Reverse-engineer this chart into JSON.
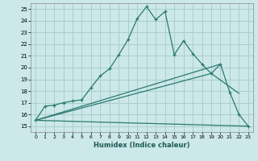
{
  "xlabel": "Humidex (Indice chaleur)",
  "bg_color": "#cce8e8",
  "grid_color": "#aacece",
  "line_color": "#2a7a70",
  "xlim": [
    -0.5,
    23.5
  ],
  "ylim": [
    14.5,
    25.5
  ],
  "xticks": [
    0,
    1,
    2,
    3,
    4,
    5,
    6,
    7,
    8,
    9,
    10,
    11,
    12,
    13,
    14,
    15,
    16,
    17,
    18,
    19,
    20,
    21,
    22,
    23
  ],
  "yticks": [
    15,
    16,
    17,
    18,
    19,
    20,
    21,
    22,
    23,
    24,
    25
  ],
  "line1_x": [
    0,
    1,
    2,
    3,
    4,
    5,
    6,
    7,
    8,
    9,
    10,
    11,
    12,
    13,
    14,
    15,
    16,
    17,
    18,
    19,
    20,
    21,
    22,
    23
  ],
  "line1_y": [
    15.5,
    16.7,
    16.8,
    17.0,
    17.15,
    17.25,
    18.3,
    19.3,
    19.9,
    21.1,
    22.4,
    24.2,
    25.2,
    24.1,
    24.8,
    21.1,
    22.3,
    21.2,
    20.3,
    19.5,
    20.3,
    17.9,
    16.0,
    15.0
  ],
  "line2_x": [
    0,
    20
  ],
  "line2_y": [
    15.5,
    20.3
  ],
  "line3_x": [
    0,
    19,
    22
  ],
  "line3_y": [
    15.5,
    19.5,
    17.8
  ],
  "line4_x": [
    0,
    23
  ],
  "line4_y": [
    15.5,
    15.0
  ]
}
